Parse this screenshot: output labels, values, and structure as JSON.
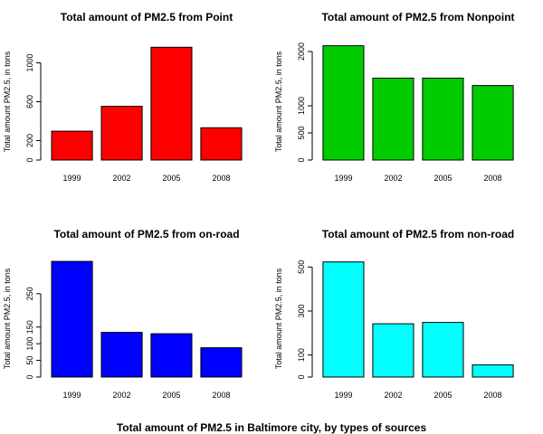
{
  "figure": {
    "overall_title": "Total amount of PM2.5 in Baltimore city, by types of sources"
  },
  "chart_data": [
    {
      "type": "bar",
      "title": "Total amount of PM2.5 from Point",
      "ylabel": "Total amount PM2.5, in tons",
      "xlabel": "",
      "categories": [
        "1999",
        "2002",
        "2005",
        "2008"
      ],
      "values": [
        297,
        553,
        1160,
        332
      ],
      "ylim": [
        0,
        1200
      ],
      "yticks": [
        0,
        200,
        600,
        1000
      ],
      "color": "#ff0000"
    },
    {
      "type": "bar",
      "title": "Total amount of PM2.5 from Nonpoint",
      "ylabel": "Total amount PM2.5, in tons",
      "xlabel": "",
      "categories": [
        "1999",
        "2002",
        "2005",
        "2008"
      ],
      "values": [
        2107,
        1510,
        1510,
        1373
      ],
      "ylim": [
        0,
        2150
      ],
      "yticks": [
        0,
        500,
        1000,
        2000
      ],
      "color": "#00cc00"
    },
    {
      "type": "bar",
      "title": "Total amount of PM2.5 from on-road",
      "ylabel": "Total amount PM2.5, in tons",
      "xlabel": "",
      "categories": [
        "1999",
        "2002",
        "2005",
        "2008"
      ],
      "values": [
        347,
        134,
        130,
        88
      ],
      "ylim": [
        0,
        350
      ],
      "yticks": [
        0,
        50,
        100,
        150,
        250
      ],
      "color": "#0000ff"
    },
    {
      "type": "bar",
      "title": "Total amount of PM2.5 from non-road",
      "ylabel": "Total amount PM2.5, in tons",
      "xlabel": "",
      "categories": [
        "1999",
        "2002",
        "2005",
        "2008"
      ],
      "values": [
        523,
        242,
        248,
        55
      ],
      "ylim": [
        0,
        530
      ],
      "yticks": [
        0,
        100,
        300,
        500
      ],
      "color": "#00ffff"
    }
  ]
}
